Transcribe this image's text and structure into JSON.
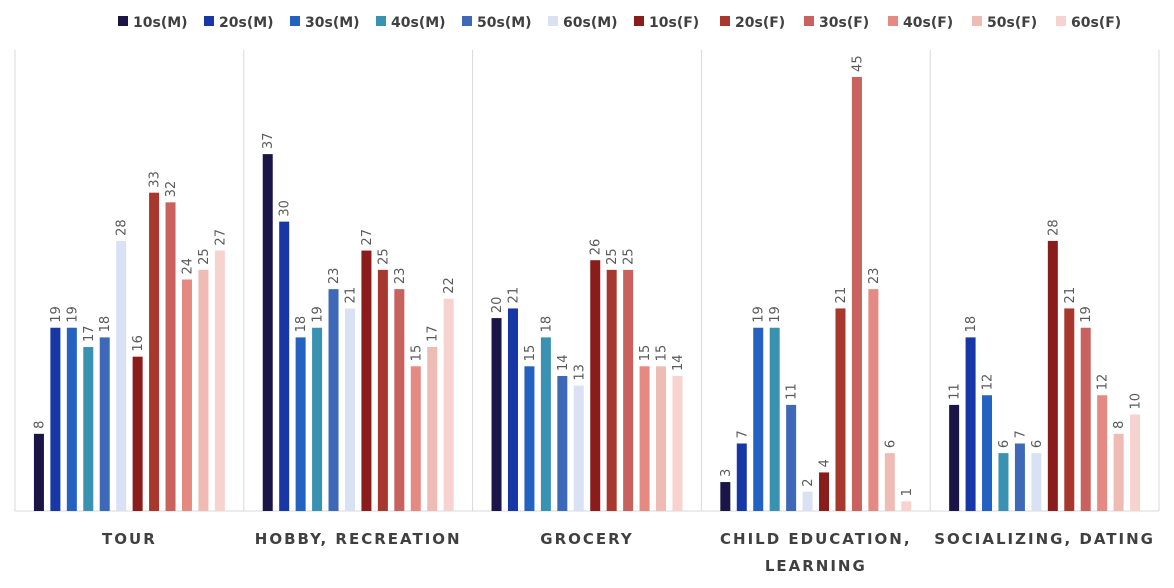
{
  "chart_data": {
    "type": "bar",
    "categories": [
      [
        "TOUR"
      ],
      [
        "HOBBY, RECREATION"
      ],
      [
        "GROCERY"
      ],
      [
        "CHILD EDUCATION,",
        "LEARNING"
      ],
      [
        "SOCIALIZING, DATING"
      ]
    ],
    "ylim": [
      0,
      48
    ],
    "legend_position": "top",
    "grid": false,
    "series": [
      {
        "name": "10s(M)",
        "color": "#1b1447",
        "values": [
          8,
          37,
          20,
          3,
          11
        ]
      },
      {
        "name": "20s(M)",
        "color": "#1737a6",
        "values": [
          19,
          30,
          21,
          7,
          18
        ]
      },
      {
        "name": "30s(M)",
        "color": "#2462c2",
        "values": [
          19,
          18,
          15,
          19,
          12
        ]
      },
      {
        "name": "40s(M)",
        "color": "#3a92b3",
        "values": [
          17,
          19,
          18,
          19,
          6
        ]
      },
      {
        "name": "50s(M)",
        "color": "#3e69b8",
        "values": [
          18,
          23,
          14,
          11,
          7
        ]
      },
      {
        "name": "60s(M)",
        "color": "#d9e2f5",
        "values": [
          28,
          21,
          13,
          2,
          6
        ]
      },
      {
        "name": "10s(F)",
        "color": "#8a1c1c",
        "values": [
          16,
          27,
          26,
          4,
          28
        ]
      },
      {
        "name": "20s(F)",
        "color": "#a8372e",
        "values": [
          33,
          25,
          25,
          21,
          21
        ]
      },
      {
        "name": "30s(F)",
        "color": "#c9615e",
        "values": [
          32,
          23,
          25,
          45,
          19
        ]
      },
      {
        "name": "40s(F)",
        "color": "#e58a82",
        "values": [
          24,
          15,
          15,
          23,
          12
        ]
      },
      {
        "name": "50s(F)",
        "color": "#eebbb5",
        "values": [
          25,
          17,
          15,
          6,
          8
        ]
      },
      {
        "name": "60s(F)",
        "color": "#f6d3ce",
        "values": [
          27,
          22,
          14,
          1,
          10
        ]
      }
    ]
  }
}
